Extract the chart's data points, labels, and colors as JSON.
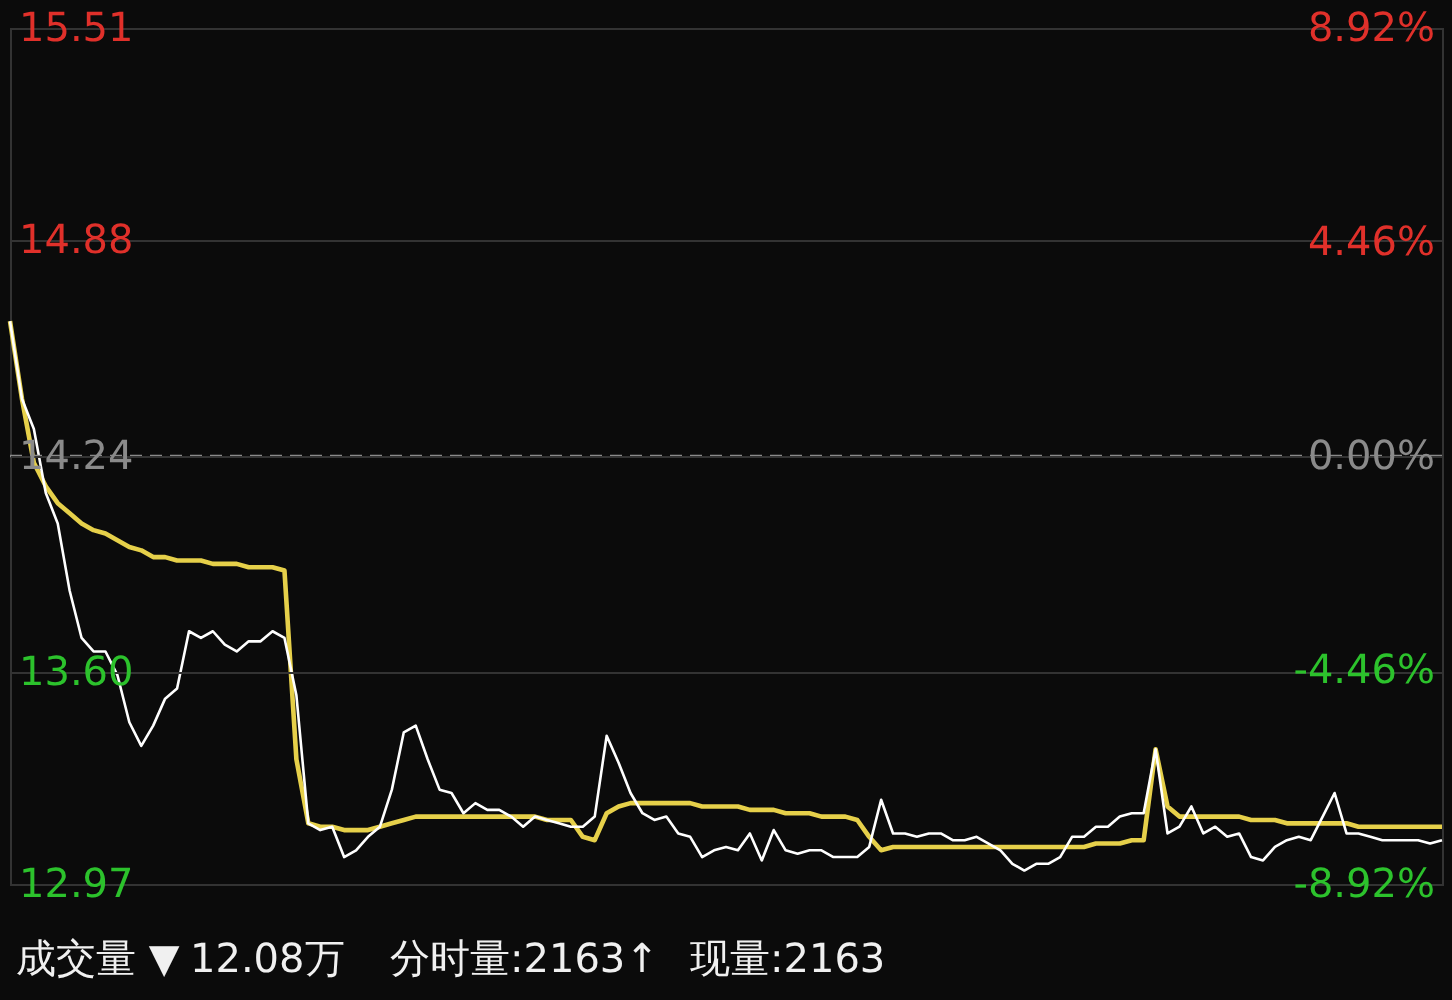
{
  "chart_data": {
    "type": "line",
    "categories": [
      null,
      null,
      null,
      null,
      null,
      null,
      null,
      null,
      null,
      null,
      null,
      null,
      null,
      null,
      null,
      null,
      null,
      null,
      null,
      null,
      null,
      null,
      null,
      null,
      null,
      null,
      null,
      null,
      null,
      null,
      null,
      null,
      null,
      null,
      null,
      null,
      null,
      null,
      null,
      null,
      null,
      null,
      null,
      null,
      null,
      null,
      null,
      null,
      null,
      null,
      null,
      null,
      null,
      null,
      null,
      null,
      null,
      null,
      null,
      null,
      null,
      null,
      null,
      null,
      null,
      null,
      null,
      null,
      null,
      null,
      null,
      null,
      null,
      null,
      null,
      null,
      null,
      null,
      null,
      null,
      null,
      null,
      null,
      null,
      null,
      null,
      null,
      null,
      null,
      null,
      null,
      null,
      null,
      null,
      null,
      null,
      null,
      null,
      null,
      null,
      null,
      null,
      null,
      null,
      null,
      null,
      null,
      null,
      null,
      null,
      null,
      null,
      null,
      null,
      null,
      null,
      null,
      null,
      null,
      null,
      null
    ],
    "ylim": [
      12.97,
      15.51
    ],
    "yticks": [
      {
        "value": 15.51,
        "label": "15.51"
      },
      {
        "value": 14.88,
        "label": "14.88"
      },
      {
        "value": 14.24,
        "label": "14.24"
      },
      {
        "value": 13.6,
        "label": "13.60"
      },
      {
        "value": 12.97,
        "label": "12.97"
      }
    ],
    "y2lim": [
      -8.92,
      8.92
    ],
    "y2ticks": [
      {
        "value": 8.92,
        "label": "8.92%"
      },
      {
        "value": 4.46,
        "label": "4.46%"
      },
      {
        "value": 0,
        "label": "0.00%"
      },
      {
        "value": -4.46,
        "label": "-4.46%"
      },
      {
        "value": -8.92,
        "label": "-8.92%"
      }
    ],
    "grid": "y",
    "ref_lines": [
      {
        "axis": "y",
        "value": 14.24,
        "color": "#8a8a8a",
        "line_style": "dashed"
      }
    ],
    "annotations": [
      "成交量 ▼",
      "12.08万",
      "分时量:2163↑",
      "现量:2163"
    ],
    "series": [
      {
        "color": "#ffffff",
        "values": [
          14.64,
          14.41,
          14.32,
          14.13,
          14.04,
          13.84,
          13.7,
          13.66,
          13.66,
          13.59,
          13.45,
          13.38,
          13.44,
          13.52,
          13.55,
          13.72,
          13.7,
          13.72,
          13.68,
          13.66,
          13.69,
          13.69,
          13.72,
          13.7,
          13.53,
          13.15,
          13.13,
          13.14,
          13.05,
          13.07,
          13.11,
          13.14,
          13.25,
          13.42,
          13.44,
          13.34,
          13.25,
          13.24,
          13.18,
          13.21,
          13.19,
          13.19,
          13.17,
          13.14,
          13.17,
          13.16,
          13.15,
          13.14,
          13.14,
          13.17,
          13.41,
          13.33,
          13.24,
          13.18,
          13.16,
          13.17,
          13.12,
          13.11,
          13.05,
          13.07,
          13.08,
          13.07,
          13.12,
          13.04,
          13.13,
          13.07,
          13.06,
          13.07,
          13.07,
          13.05,
          13.05,
          13.05,
          13.08,
          13.22,
          13.12,
          13.12,
          13.11,
          13.12,
          13.12,
          13.1,
          13.1,
          13.11,
          13.09,
          13.07,
          13.03,
          13.01,
          13.03,
          13.03,
          13.05,
          13.11,
          13.11,
          13.14,
          13.14,
          13.17,
          13.18,
          13.18,
          13.37,
          13.12,
          13.14,
          13.2,
          13.12,
          13.14,
          13.11,
          13.12,
          13.05,
          13.04,
          13.08,
          13.1,
          13.11,
          13.1,
          13.17,
          13.24,
          13.12,
          13.12,
          13.11,
          13.1,
          13.1,
          13.1,
          13.1,
          13.09,
          13.1
        ]
      },
      {
        "color": "#e6d04a",
        "values": [
          14.64,
          14.41,
          14.22,
          14.15,
          14.1,
          14.07,
          14.04,
          14.02,
          14.01,
          13.99,
          13.97,
          13.96,
          13.94,
          13.94,
          13.93,
          13.93,
          13.93,
          13.92,
          13.92,
          13.92,
          13.91,
          13.91,
          13.91,
          13.9,
          13.34,
          13.15,
          13.14,
          13.14,
          13.13,
          13.13,
          13.13,
          13.14,
          13.15,
          13.16,
          13.17,
          13.17,
          13.17,
          13.17,
          13.17,
          13.17,
          13.17,
          13.17,
          13.17,
          13.17,
          13.17,
          13.16,
          13.16,
          13.16,
          13.11,
          13.1,
          13.18,
          13.2,
          13.21,
          13.21,
          13.21,
          13.21,
          13.21,
          13.21,
          13.2,
          13.2,
          13.2,
          13.2,
          13.19,
          13.19,
          13.19,
          13.18,
          13.18,
          13.18,
          13.17,
          13.17,
          13.17,
          13.16,
          13.11,
          13.07,
          13.08,
          13.08,
          13.08,
          13.08,
          13.08,
          13.08,
          13.08,
          13.08,
          13.08,
          13.08,
          13.08,
          13.08,
          13.08,
          13.08,
          13.08,
          13.08,
          13.08,
          13.09,
          13.09,
          13.09,
          13.1,
          13.1,
          13.37,
          13.2,
          13.17,
          13.17,
          13.17,
          13.17,
          13.17,
          13.17,
          13.16,
          13.16,
          13.16,
          13.15,
          13.15,
          13.15,
          13.15,
          13.15,
          13.15,
          13.14,
          13.14,
          13.14,
          13.14,
          13.14,
          13.14,
          13.14,
          13.14
        ]
      }
    ]
  }
}
